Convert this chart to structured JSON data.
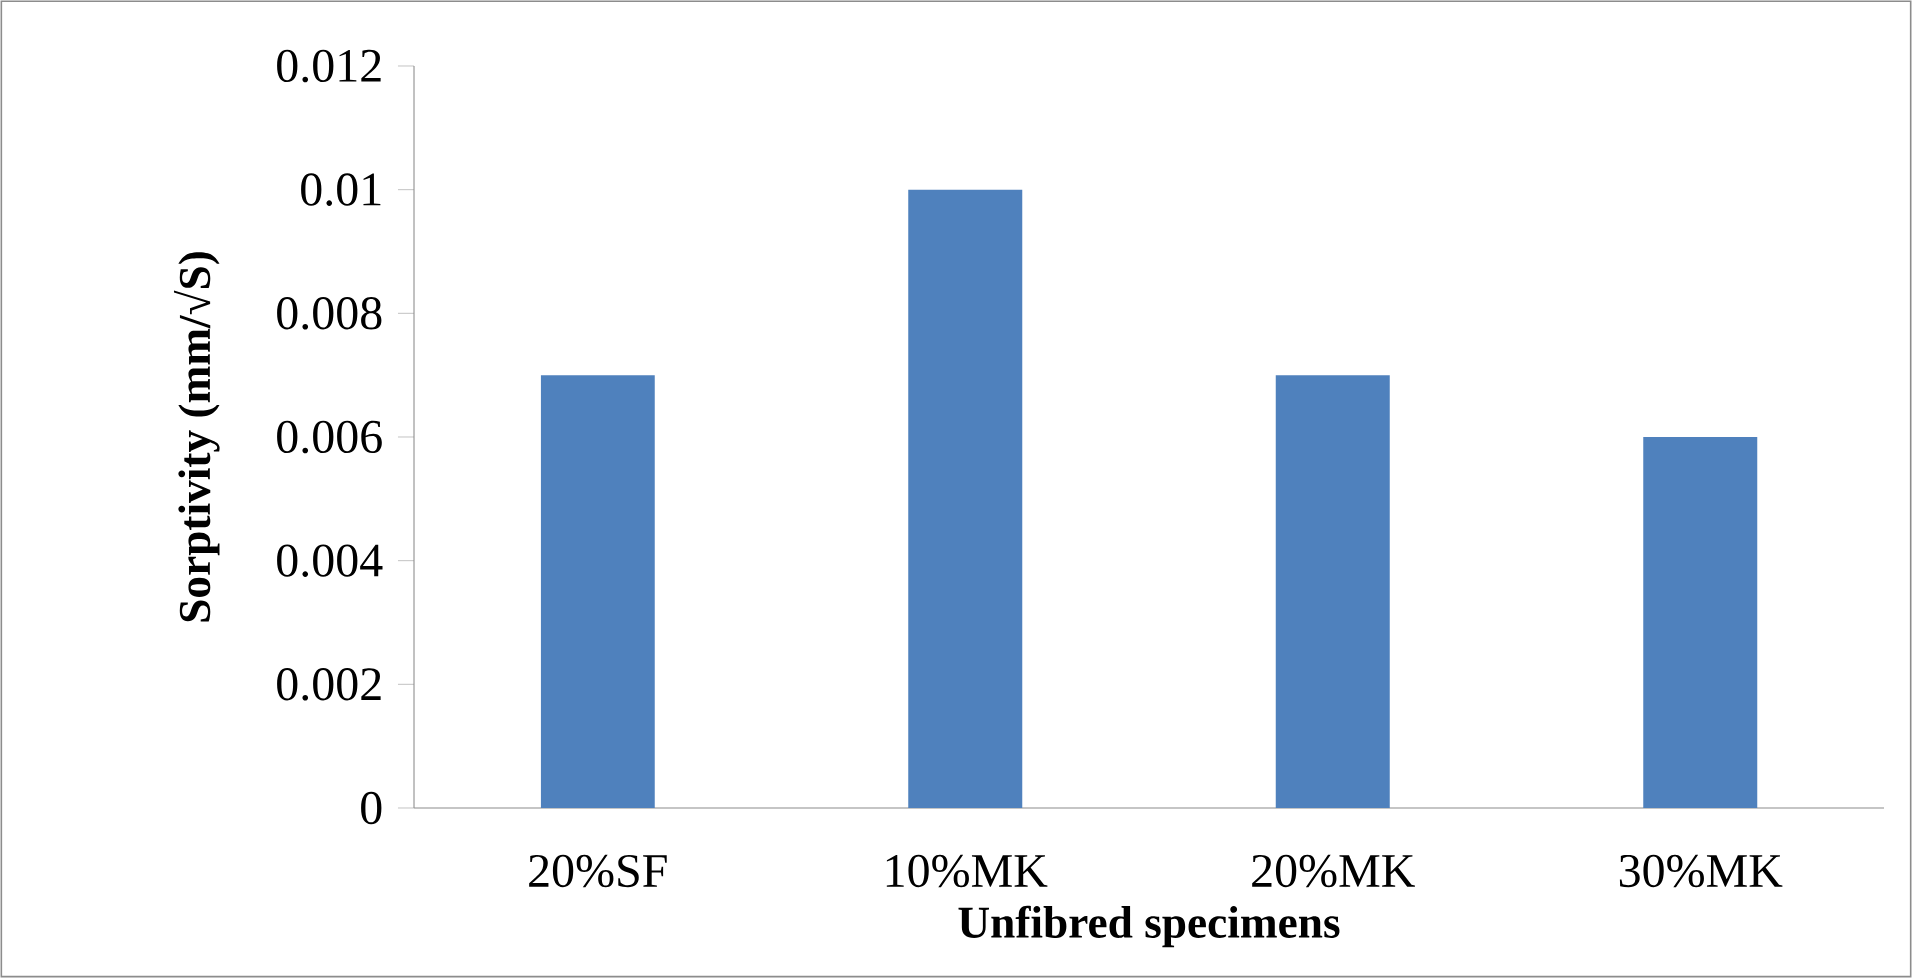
{
  "chart_data": {
    "type": "bar",
    "xlabel": "Unfibred specimens",
    "ylabel": "Sorptivity (mm/√S)",
    "categories": [
      "20%SF",
      "10%MK",
      "20%MK",
      "30%MK"
    ],
    "values": [
      0.007,
      0.01,
      0.007,
      0.006
    ],
    "color": "#4f81bd",
    "ylim": [
      0,
      0.012
    ],
    "yticks": [
      0,
      0.002,
      0.004,
      0.006,
      0.008,
      0.01,
      0.012
    ]
  }
}
